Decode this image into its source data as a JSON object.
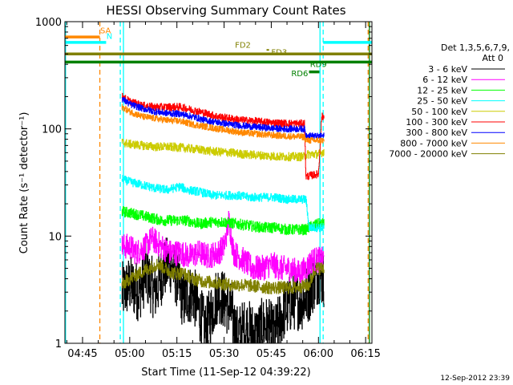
{
  "chart_data": {
    "type": "line",
    "title": "HESSI Observing Summary Count Rates",
    "xlabel": "Start Time (11-Sep-12 04:39:22)",
    "ylabel": "Count Rate (s⁻¹ detector⁻¹)",
    "yscale": "log",
    "ylim": [
      1,
      1000
    ],
    "xlim_minutes": [
      279.4,
      377.0
    ],
    "x_ticks": [
      {
        "label": "04:45",
        "minute": 285
      },
      {
        "label": "05:00",
        "minute": 300
      },
      {
        "label": "05:15",
        "minute": 315
      },
      {
        "label": "05:30",
        "minute": 330
      },
      {
        "label": "05:45",
        "minute": 345
      },
      {
        "label": "06:00",
        "minute": 360
      },
      {
        "label": "06:15",
        "minute": 375
      }
    ],
    "y_ticks": [
      {
        "label": "1",
        "value": 1
      },
      {
        "label": "10",
        "value": 10
      },
      {
        "label": "100",
        "value": 100
      },
      {
        "label": "1000",
        "value": 1000
      }
    ],
    "grid": false,
    "legend_placement": "right",
    "legend_title": [
      "Det 1,3,5,6,7,9,",
      "Att 0"
    ],
    "series": [
      {
        "name": "3 - 6 keV",
        "color": "#000000",
        "noise": 0.28,
        "points": [
          [
            297.5,
            3
          ],
          [
            300,
            3.5
          ],
          [
            303,
            3
          ],
          [
            305,
            4.5
          ],
          [
            308,
            3
          ],
          [
            311,
            5
          ],
          [
            313,
            5.5
          ],
          [
            315,
            4
          ],
          [
            317,
            2.5
          ],
          [
            320,
            3
          ],
          [
            322,
            2
          ],
          [
            324,
            1.3
          ],
          [
            326,
            2
          ],
          [
            328,
            3
          ],
          [
            330,
            2.5
          ],
          [
            332,
            2
          ],
          [
            334,
            1.2
          ],
          [
            337,
            1.4
          ],
          [
            340,
            1.2
          ],
          [
            343,
            1.5
          ],
          [
            346,
            1.2
          ],
          [
            349,
            2
          ],
          [
            352,
            2.5
          ],
          [
            355,
            2.5
          ],
          [
            357,
            3
          ],
          [
            358,
            3.5
          ],
          [
            360,
            4.5
          ],
          [
            361.8,
            4
          ]
        ]
      },
      {
        "name": "6 - 12 keV",
        "color": "#ff00ff",
        "noise": 0.12,
        "points": [
          [
            297.5,
            8
          ],
          [
            300,
            8
          ],
          [
            302,
            7
          ],
          [
            305,
            8
          ],
          [
            307,
            9.5
          ],
          [
            310,
            8
          ],
          [
            313,
            7
          ],
          [
            316,
            7
          ],
          [
            319,
            6.5
          ],
          [
            322,
            7
          ],
          [
            325,
            6.5
          ],
          [
            328,
            7
          ],
          [
            330,
            8
          ],
          [
            331.5,
            14
          ],
          [
            333,
            7
          ],
          [
            336,
            6
          ],
          [
            339,
            5
          ],
          [
            342,
            5
          ],
          [
            345,
            5.5
          ],
          [
            348,
            5
          ],
          [
            351,
            5
          ],
          [
            354,
            4.5
          ],
          [
            356,
            5
          ],
          [
            358,
            6
          ],
          [
            360,
            6
          ],
          [
            361.8,
            6
          ]
        ]
      },
      {
        "name": "12 - 25 keV",
        "color": "#00ff00",
        "noise": 0.05,
        "points": [
          [
            297.5,
            17
          ],
          [
            302,
            16
          ],
          [
            306,
            15
          ],
          [
            310,
            14
          ],
          [
            314,
            14
          ],
          [
            318,
            14
          ],
          [
            322,
            13
          ],
          [
            326,
            13.5
          ],
          [
            330,
            13.5
          ],
          [
            334,
            13
          ],
          [
            338,
            12.5
          ],
          [
            342,
            12
          ],
          [
            346,
            12
          ],
          [
            350,
            11.5
          ],
          [
            354,
            11.5
          ],
          [
            356,
            11.5
          ],
          [
            358,
            12.5
          ],
          [
            360,
            13
          ],
          [
            361.8,
            13
          ]
        ]
      },
      {
        "name": "25 - 50 keV",
        "color": "#00ffff",
        "noise": 0.04,
        "points": [
          [
            297.5,
            34
          ],
          [
            300,
            32
          ],
          [
            304,
            30
          ],
          [
            308,
            28
          ],
          [
            312,
            27
          ],
          [
            314,
            28
          ],
          [
            316,
            29
          ],
          [
            318,
            27
          ],
          [
            322,
            26
          ],
          [
            326,
            24
          ],
          [
            330,
            24
          ],
          [
            334,
            24
          ],
          [
            338,
            23
          ],
          [
            342,
            23
          ],
          [
            346,
            23
          ],
          [
            350,
            22
          ],
          [
            354,
            22
          ],
          [
            356,
            22
          ],
          [
            357,
            12
          ],
          [
            359,
            12
          ],
          [
            361.8,
            12
          ]
        ]
      },
      {
        "name": "50 - 100 keV",
        "color": "#cccc00",
        "noise": 0.04,
        "points": [
          [
            297.5,
            75
          ],
          [
            300,
            72
          ],
          [
            304,
            70
          ],
          [
            308,
            68
          ],
          [
            312,
            68
          ],
          [
            316,
            67
          ],
          [
            320,
            65
          ],
          [
            324,
            63
          ],
          [
            328,
            61
          ],
          [
            332,
            60
          ],
          [
            336,
            58
          ],
          [
            340,
            57
          ],
          [
            344,
            56
          ],
          [
            348,
            55
          ],
          [
            352,
            55
          ],
          [
            355.5,
            55
          ],
          [
            356.5,
            58
          ],
          [
            360,
            58
          ],
          [
            361,
            60
          ],
          [
            361.8,
            62
          ]
        ]
      },
      {
        "name": "100 - 300 keV",
        "color": "#ff0000",
        "noise": 0.035,
        "points": [
          [
            297.5,
            200
          ],
          [
            300,
            180
          ],
          [
            304,
            165
          ],
          [
            308,
            160
          ],
          [
            312,
            160
          ],
          [
            316,
            160
          ],
          [
            320,
            150
          ],
          [
            324,
            140
          ],
          [
            328,
            130
          ],
          [
            332,
            125
          ],
          [
            336,
            120
          ],
          [
            340,
            118
          ],
          [
            344,
            115
          ],
          [
            348,
            113
          ],
          [
            352,
            112
          ],
          [
            355.5,
            112
          ],
          [
            356,
            36
          ],
          [
            360,
            38
          ],
          [
            361,
            130
          ],
          [
            361.8,
            130
          ]
        ]
      },
      {
        "name": "300 - 800 keV",
        "color": "#0000ff",
        "noise": 0.03,
        "points": [
          [
            297.5,
            190
          ],
          [
            300,
            170
          ],
          [
            304,
            155
          ],
          [
            308,
            145
          ],
          [
            312,
            140
          ],
          [
            316,
            138
          ],
          [
            320,
            130
          ],
          [
            324,
            120
          ],
          [
            328,
            115
          ],
          [
            332,
            110
          ],
          [
            336,
            107
          ],
          [
            340,
            104
          ],
          [
            344,
            102
          ],
          [
            348,
            100
          ],
          [
            352,
            100
          ],
          [
            355.5,
            100
          ],
          [
            356,
            87
          ],
          [
            360,
            85
          ],
          [
            361.8,
            86
          ]
        ]
      },
      {
        "name": "800 - 7000 keV",
        "color": "#ff8800",
        "noise": 0.03,
        "points": [
          [
            297.5,
            160
          ],
          [
            300,
            145
          ],
          [
            304,
            130
          ],
          [
            308,
            125
          ],
          [
            312,
            120
          ],
          [
            316,
            118
          ],
          [
            320,
            110
          ],
          [
            324,
            105
          ],
          [
            328,
            100
          ],
          [
            332,
            96
          ],
          [
            336,
            92
          ],
          [
            340,
            90
          ],
          [
            344,
            88
          ],
          [
            348,
            86
          ],
          [
            352,
            85
          ],
          [
            355.5,
            84
          ],
          [
            356,
            78
          ],
          [
            360,
            78
          ],
          [
            361.8,
            78
          ]
        ]
      },
      {
        "name": "7000 - 20000 keV",
        "color": "#808000",
        "noise": 0.06,
        "points": [
          [
            297.5,
            3.5
          ],
          [
            300,
            4
          ],
          [
            303,
            4.5
          ],
          [
            306,
            5
          ],
          [
            309,
            5.5
          ],
          [
            311,
            5
          ],
          [
            314,
            4.5
          ],
          [
            317,
            4.5
          ],
          [
            320,
            4
          ],
          [
            323,
            3.8
          ],
          [
            326,
            3.7
          ],
          [
            329,
            3.6
          ],
          [
            332,
            3.5
          ],
          [
            336,
            3.5
          ],
          [
            340,
            3.4
          ],
          [
            344,
            3.3
          ],
          [
            348,
            3.3
          ],
          [
            352,
            3.3
          ],
          [
            355,
            3.4
          ],
          [
            357,
            3.5
          ],
          [
            359,
            5
          ],
          [
            361,
            5
          ],
          [
            361.8,
            5
          ]
        ]
      }
    ],
    "flag_bars": [
      {
        "name": "SAA",
        "label": "SA",
        "color": "#ff8800",
        "value": 720,
        "x_start": 279.4,
        "x_end": 290.5
      },
      {
        "name": "NIGHT",
        "label": "N",
        "color": "#00ffff",
        "value": 640,
        "x_start": 279.4,
        "x_end": 292.5
      },
      {
        "name": "NIGHT2",
        "label": "",
        "color": "#00ffff",
        "value": 640,
        "x_start": 361.5,
        "x_end": 377.0
      },
      {
        "name": "FD2",
        "label": "FD2",
        "color": "#808000",
        "value": 500,
        "x_start": 279.4,
        "x_end": 377.0
      },
      {
        "name": "FD3",
        "label": "FD3",
        "color": "#808000",
        "value": 500,
        "x_start": 279.4,
        "x_end": 377.0
      },
      {
        "name": "FD3_marker",
        "label": "",
        "color": "#808000",
        "value": 545,
        "x_start": 343.5,
        "x_end": 344.3
      },
      {
        "name": "RD9",
        "label": "RD9",
        "color": "#008000",
        "value": 420,
        "x_start": 279.4,
        "x_end": 377.0
      },
      {
        "name": "RD6",
        "label": "RD6",
        "color": "#008000",
        "value": 340,
        "x_start": 357.0,
        "x_end": 360.3
      }
    ],
    "vertical_markers": [
      {
        "color": "#00ffff",
        "style": "solid",
        "minute": 279.6
      },
      {
        "color": "#ff8800",
        "style": "dashed",
        "minute": 290.5
      },
      {
        "color": "#00ffff",
        "style": "dashed",
        "minute": 297.0
      },
      {
        "color": "#00ffff",
        "style": "solid",
        "minute": 298.0
      },
      {
        "color": "#00ffff",
        "style": "solid",
        "minute": 360.5
      },
      {
        "color": "#00ffff",
        "style": "dashed",
        "minute": 361.5
      },
      {
        "color": "#ff8800",
        "style": "dashed",
        "minute": 375.8
      },
      {
        "color": "#008000",
        "style": "solid",
        "minute": 376.2
      }
    ],
    "timestamp": "12-Sep-2012 23:39"
  }
}
